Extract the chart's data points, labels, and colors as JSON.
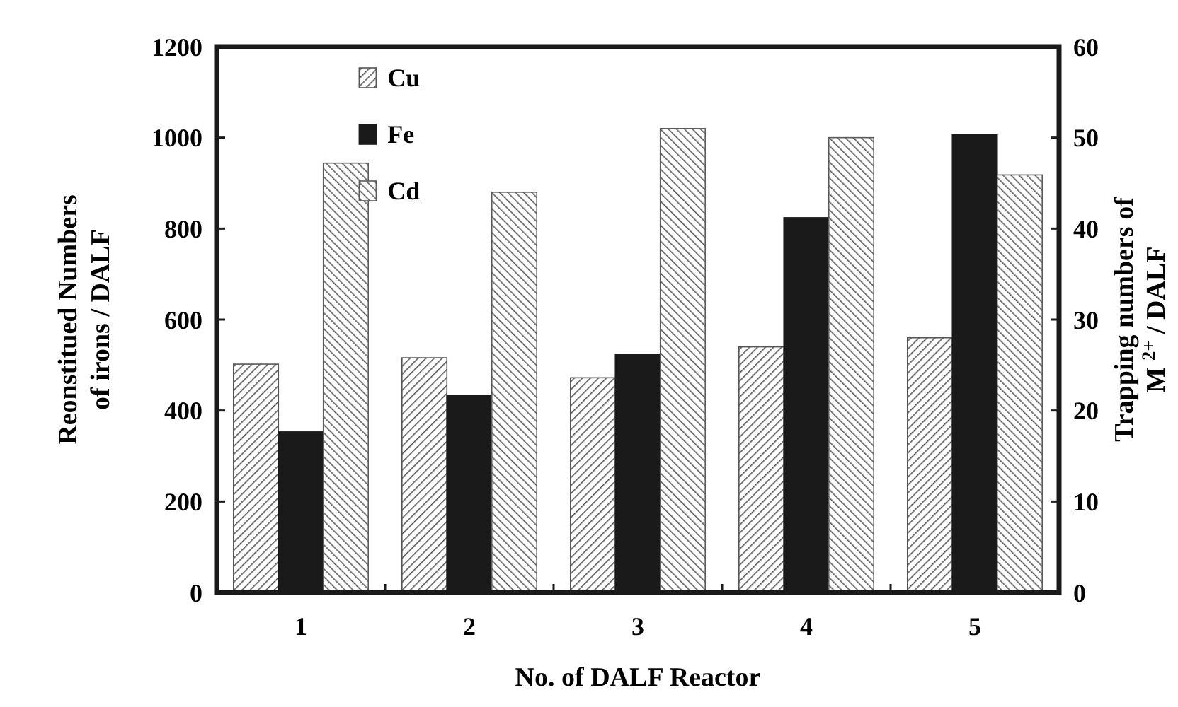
{
  "chart_data": {
    "type": "bar",
    "xlabel": "No. of DALF Reactor",
    "ylabel": "Reonstitued Numbers of irons / DALF",
    "y2label": "Trapping numbers of M $^{2+}$ / DALF",
    "categories": [
      "1",
      "2",
      "3",
      "4",
      "5"
    ],
    "series": [
      {
        "name": "Cu",
        "color": "#555555",
        "axis": "y2",
        "values": [
          25.1,
          25.8,
          23.6,
          27.0,
          28.0
        ]
      },
      {
        "name": "Fe",
        "color": "#1a1a1a",
        "values": [
          353,
          434,
          523,
          824,
          1006
        ]
      },
      {
        "name": "Cd",
        "color": "#5a5a5a",
        "axis": "y2",
        "values": [
          47.2,
          44.0,
          51.0,
          50.0,
          45.9
        ]
      }
    ],
    "ylim": [
      0,
      1200
    ],
    "yticks": [
      0,
      200,
      400,
      600,
      800,
      1000,
      1200
    ],
    "y2lim": [
      0,
      60
    ],
    "y2ticks": [
      0,
      10,
      20,
      30,
      40,
      50,
      60
    ],
    "legend": "top left",
    "grid": false
  }
}
